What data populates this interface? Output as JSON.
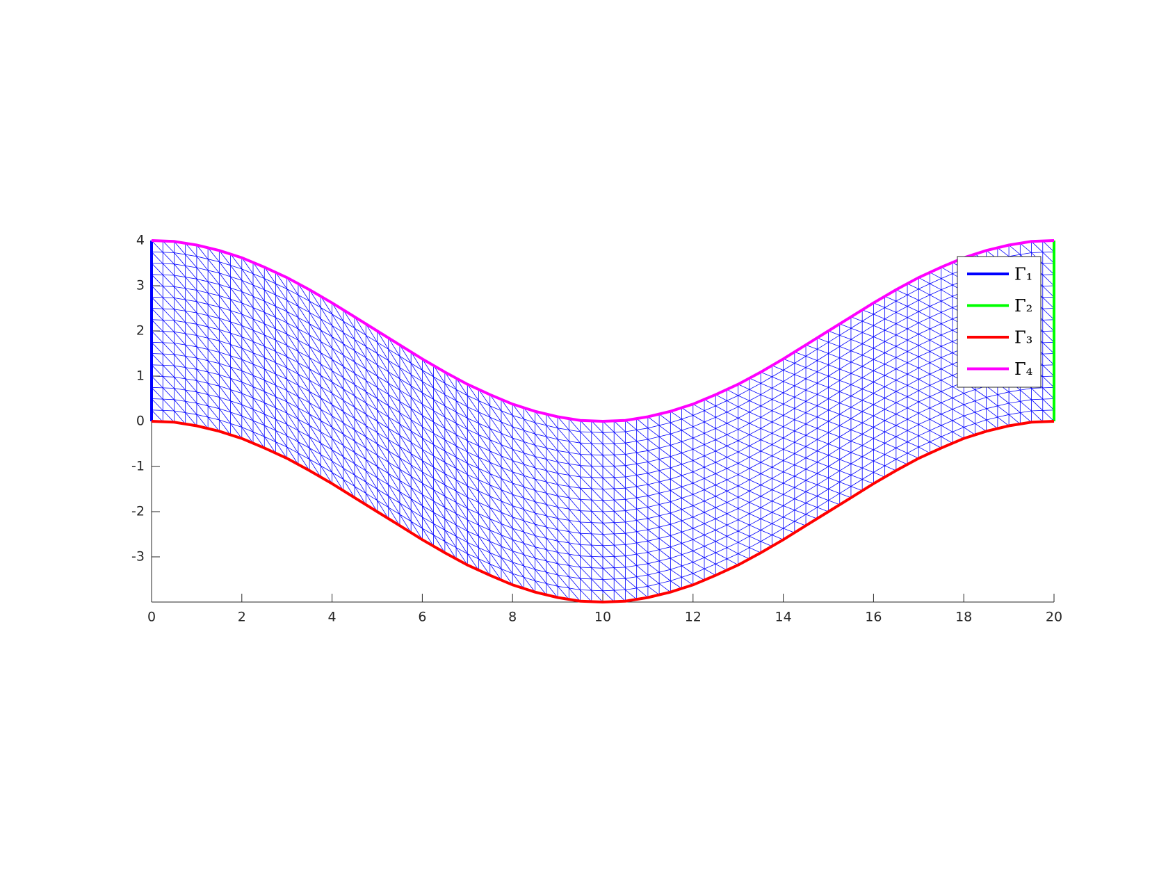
{
  "chart_data": {
    "type": "line",
    "xlim": [
      0,
      20
    ],
    "ylim": [
      -4,
      4
    ],
    "xticks": [
      0,
      2,
      4,
      6,
      8,
      10,
      12,
      14,
      16,
      18,
      20
    ],
    "yticks": [
      -3,
      -2,
      -1,
      0,
      1,
      2,
      3,
      4
    ],
    "mesh_color": "#0000ff",
    "legend": "upper right",
    "series": [
      {
        "name": "Γ₁",
        "color": "#0000ff",
        "x": [
          0,
          0
        ],
        "values": [
          0,
          4
        ]
      },
      {
        "name": "Γ₂",
        "color": "#00ff00",
        "x": [
          20,
          20
        ],
        "values": [
          0,
          4
        ]
      },
      {
        "name": "Γ₃",
        "color": "#ff0000",
        "x": [
          0,
          0.5,
          1,
          1.5,
          2,
          2.5,
          3,
          3.5,
          4,
          4.5,
          5,
          5.5,
          6,
          6.5,
          7,
          7.5,
          8,
          8.5,
          9,
          9.5,
          10,
          10.5,
          11,
          11.5,
          12,
          12.5,
          13,
          13.5,
          14,
          14.5,
          15,
          15.5,
          16,
          16.5,
          17,
          17.5,
          18,
          18.5,
          19,
          19.5,
          20
        ],
        "values": [
          0,
          -0.02,
          -0.1,
          -0.22,
          -0.38,
          -0.59,
          -0.82,
          -1.09,
          -1.38,
          -1.69,
          -2,
          -2.31,
          -2.62,
          -2.91,
          -3.18,
          -3.41,
          -3.62,
          -3.78,
          -3.9,
          -3.98,
          -4,
          -3.98,
          -3.9,
          -3.78,
          -3.62,
          -3.41,
          -3.18,
          -2.91,
          -2.62,
          -2.31,
          -2,
          -1.69,
          -1.38,
          -1.09,
          -0.82,
          -0.59,
          -0.38,
          -0.22,
          -0.1,
          -0.02,
          0
        ]
      },
      {
        "name": "Γ₄",
        "color": "#ff00ff",
        "x": [
          0,
          0.5,
          1,
          1.5,
          2,
          2.5,
          3,
          3.5,
          4,
          4.5,
          5,
          5.5,
          6,
          6.5,
          7,
          7.5,
          8,
          8.5,
          9,
          9.5,
          10,
          10.5,
          11,
          11.5,
          12,
          12.5,
          13,
          13.5,
          14,
          14.5,
          15,
          15.5,
          16,
          16.5,
          17,
          17.5,
          18,
          18.5,
          19,
          19.5,
          20
        ],
        "values": [
          4,
          3.98,
          3.9,
          3.78,
          3.62,
          3.41,
          3.18,
          2.91,
          2.62,
          2.31,
          2,
          1.69,
          1.38,
          1.09,
          0.82,
          0.59,
          0.38,
          0.22,
          0.1,
          0.02,
          0,
          0.02,
          0.1,
          0.22,
          0.38,
          0.59,
          0.82,
          1.09,
          1.38,
          1.69,
          2,
          2.31,
          2.62,
          2.91,
          3.18,
          3.41,
          3.62,
          3.78,
          3.9,
          3.98,
          4
        ]
      }
    ]
  }
}
